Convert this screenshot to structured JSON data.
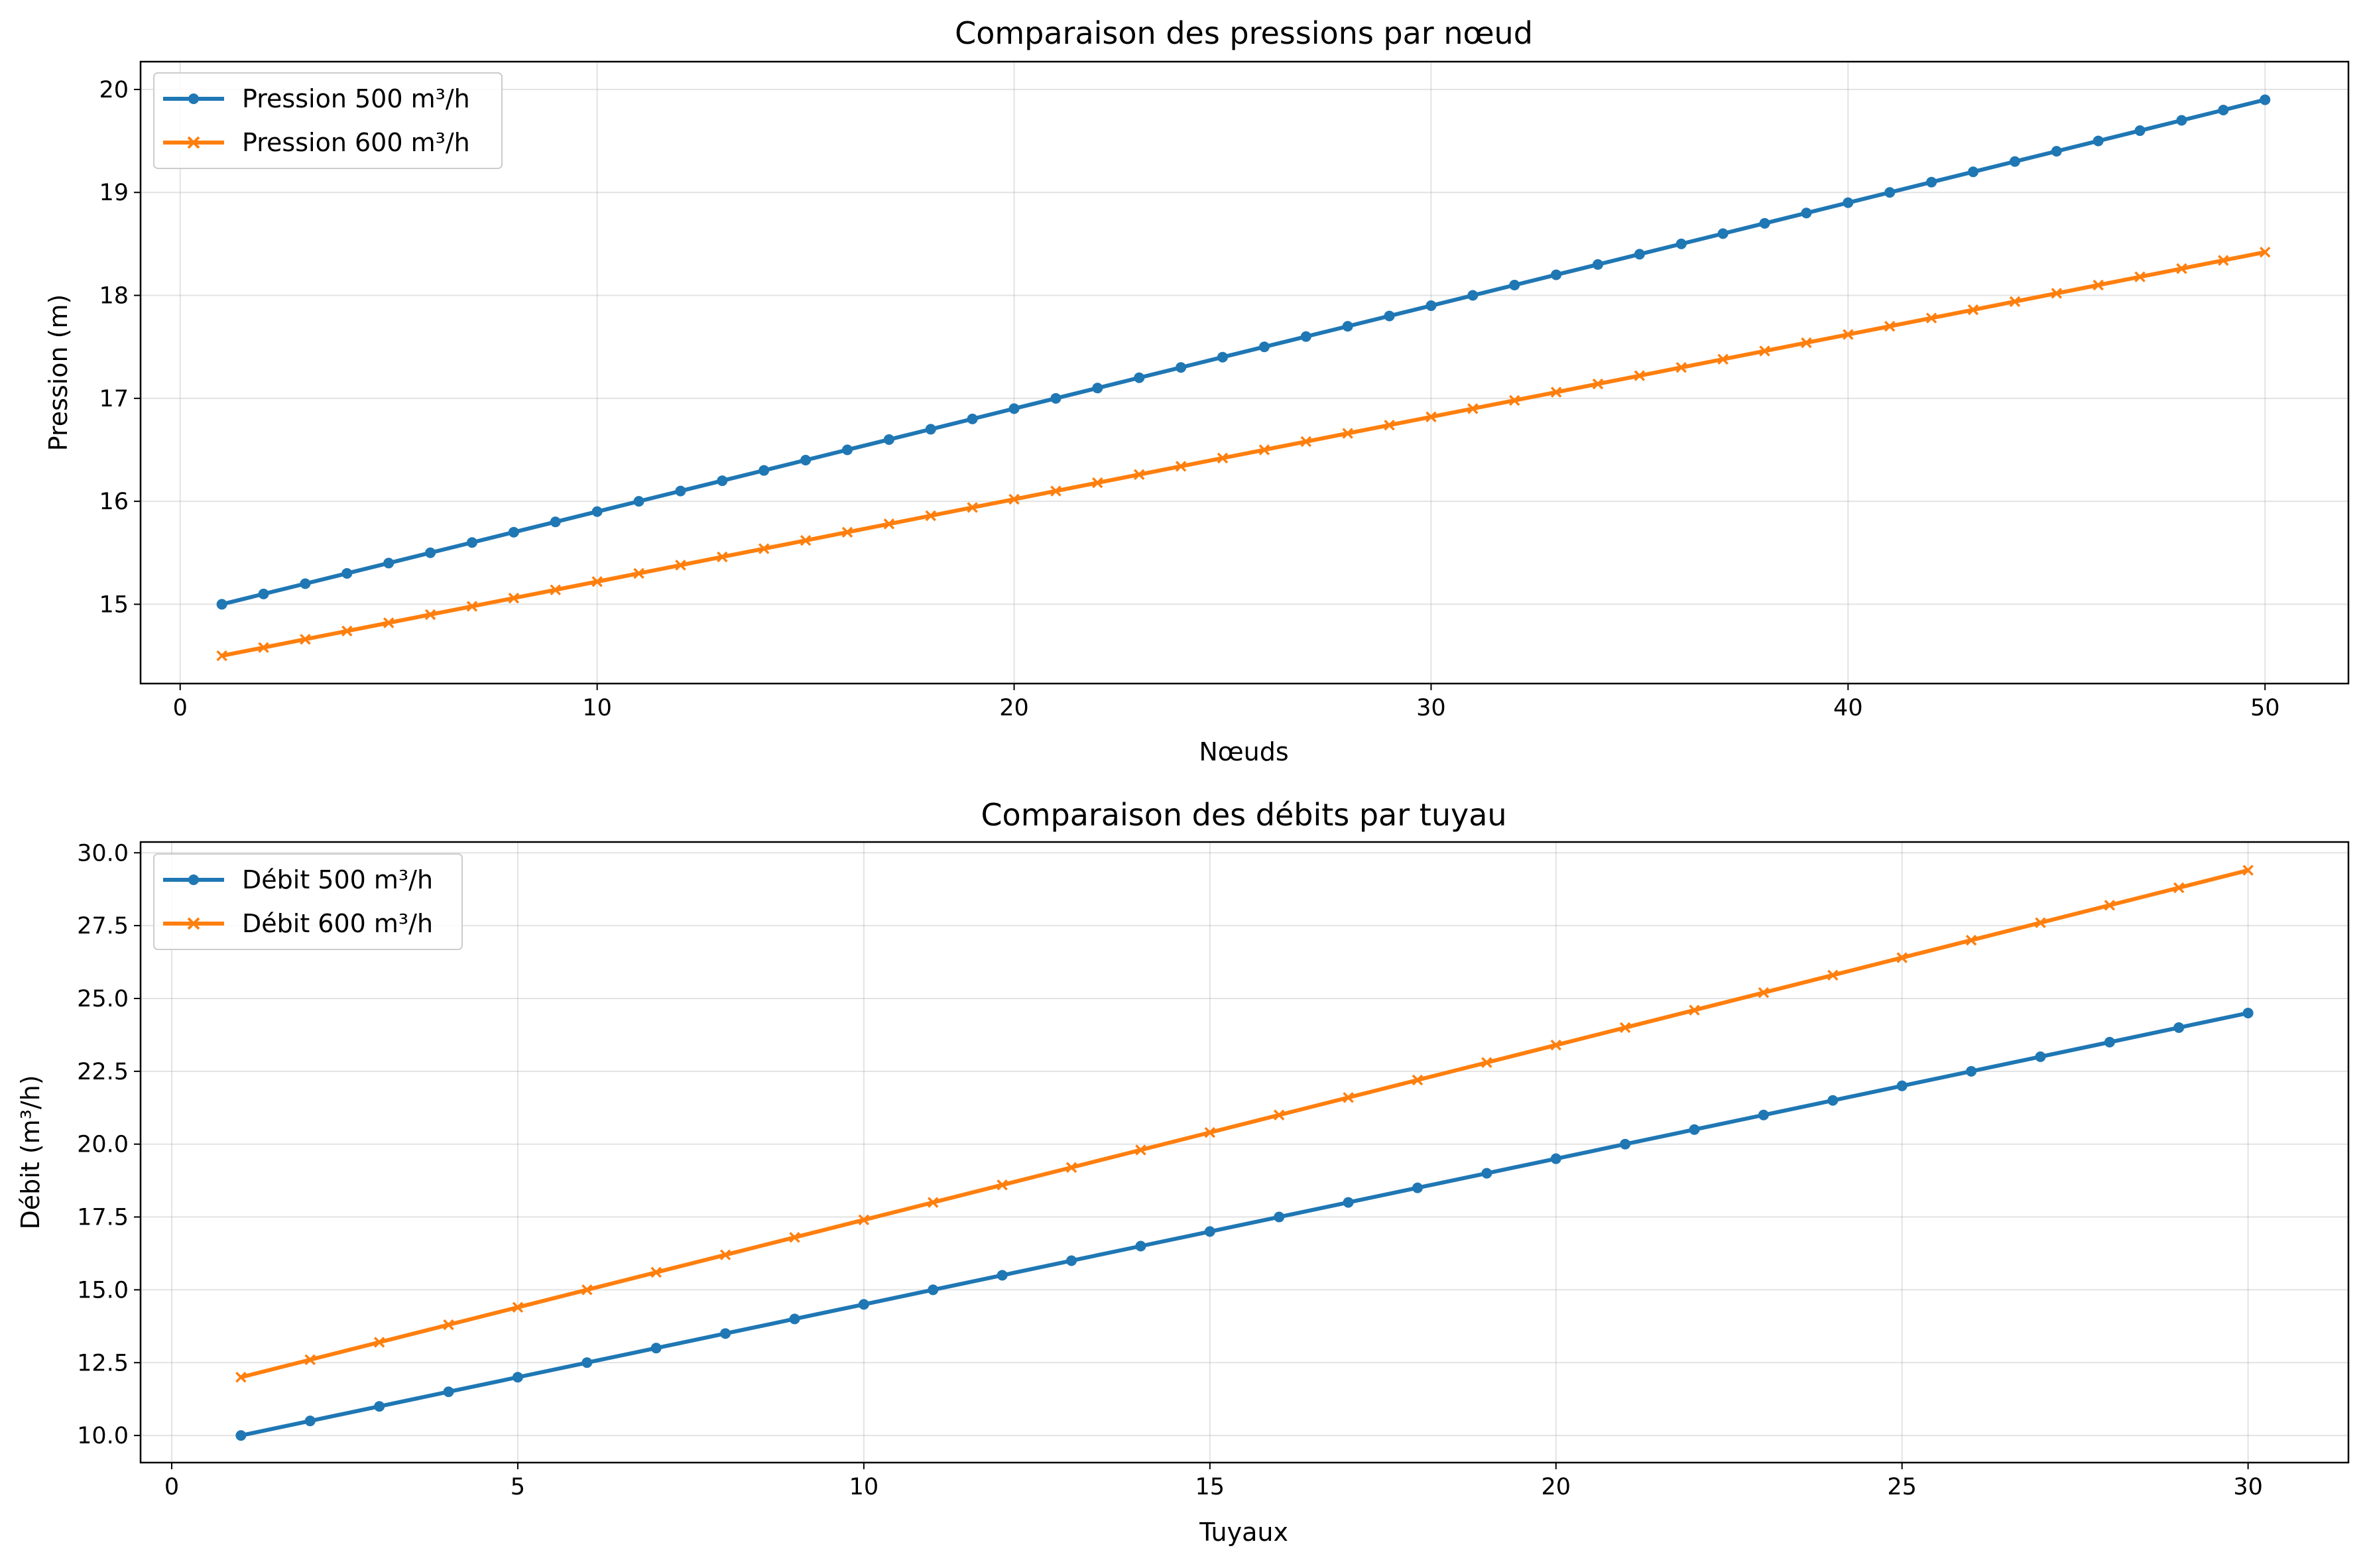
{
  "chart_data": [
    {
      "type": "line",
      "title": "Comparaison des pressions par nœud",
      "xlabel": "Nœuds",
      "ylabel": "Pression (m)",
      "xlim": [
        -0.95,
        52.0
      ],
      "ylim": [
        14.23,
        20.27
      ],
      "xticks": [
        0,
        10,
        20,
        30,
        40,
        50
      ],
      "yticks": [
        15,
        16,
        17,
        18,
        19,
        20
      ],
      "grid": true,
      "legend_position": "upper left",
      "x": [
        1,
        2,
        3,
        4,
        5,
        6,
        7,
        8,
        9,
        10,
        11,
        12,
        13,
        14,
        15,
        16,
        17,
        18,
        19,
        20,
        21,
        22,
        23,
        24,
        25,
        26,
        27,
        28,
        29,
        30,
        31,
        32,
        33,
        34,
        35,
        36,
        37,
        38,
        39,
        40,
        41,
        42,
        43,
        44,
        45,
        46,
        47,
        48,
        49,
        50
      ],
      "series": [
        {
          "name": "Pression 500 m³/h",
          "color": "#1f77b4",
          "marker": "circle",
          "values": [
            15.0,
            15.1,
            15.2,
            15.3,
            15.4,
            15.5,
            15.6,
            15.7,
            15.8,
            15.9,
            16.0,
            16.1,
            16.2,
            16.3,
            16.4,
            16.5,
            16.6,
            16.7,
            16.8,
            16.9,
            17.0,
            17.1,
            17.2,
            17.3,
            17.4,
            17.5,
            17.6,
            17.7,
            17.8,
            17.9,
            18.0,
            18.1,
            18.2,
            18.3,
            18.4,
            18.5,
            18.6,
            18.7,
            18.8,
            18.9,
            19.0,
            19.1,
            19.2,
            19.3,
            19.4,
            19.5,
            19.6,
            19.7,
            19.8,
            19.9
          ]
        },
        {
          "name": "Pression 600 m³/h",
          "color": "#ff7f0e",
          "marker": "x",
          "values": [
            14.5,
            14.58,
            14.66,
            14.74,
            14.82,
            14.9,
            14.98,
            15.06,
            15.14,
            15.22,
            15.3,
            15.38,
            15.46,
            15.54,
            15.62,
            15.7,
            15.78,
            15.86,
            15.94,
            16.02,
            16.1,
            16.18,
            16.26,
            16.34,
            16.42,
            16.5,
            16.58,
            16.66,
            16.74,
            16.82,
            16.9,
            16.98,
            17.06,
            17.14,
            17.22,
            17.3,
            17.38,
            17.46,
            17.54,
            17.62,
            17.7,
            17.78,
            17.86,
            17.94,
            18.02,
            18.1,
            18.18,
            18.26,
            18.34,
            18.42
          ]
        }
      ]
    },
    {
      "type": "line",
      "title": "Comparaison des débits par tuyau",
      "xlabel": "Tuyaux",
      "ylabel": "Débit (m³/h)",
      "xlim": [
        -0.45,
        31.45
      ],
      "ylim": [
        9.07,
        30.37
      ],
      "xticks": [
        0,
        5,
        10,
        15,
        20,
        25,
        30
      ],
      "yticks": [
        10.0,
        12.5,
        15.0,
        17.5,
        20.0,
        22.5,
        25.0,
        27.5,
        30.0
      ],
      "ytick_labels": [
        "10.0",
        "12.5",
        "15.0",
        "17.5",
        "20.0",
        "22.5",
        "25.0",
        "27.5",
        "30.0"
      ],
      "grid": true,
      "legend_position": "upper left",
      "x": [
        1,
        2,
        3,
        4,
        5,
        6,
        7,
        8,
        9,
        10,
        11,
        12,
        13,
        14,
        15,
        16,
        17,
        18,
        19,
        20,
        21,
        22,
        23,
        24,
        25,
        26,
        27,
        28,
        29,
        30
      ],
      "series": [
        {
          "name": "Débit 500 m³/h",
          "color": "#1f77b4",
          "marker": "circle",
          "values": [
            10.0,
            10.5,
            11.0,
            11.5,
            12.0,
            12.5,
            13.0,
            13.5,
            14.0,
            14.5,
            15.0,
            15.5,
            16.0,
            16.5,
            17.0,
            17.5,
            18.0,
            18.5,
            19.0,
            19.5,
            20.0,
            20.5,
            21.0,
            21.5,
            22.0,
            22.5,
            23.0,
            23.5,
            24.0,
            24.5
          ]
        },
        {
          "name": "Débit 600 m³/h",
          "color": "#ff7f0e",
          "marker": "x",
          "values": [
            12.0,
            12.6,
            13.2,
            13.8,
            14.4,
            15.0,
            15.6,
            16.2,
            16.8,
            17.4,
            18.0,
            18.6,
            19.2,
            19.8,
            20.4,
            21.0,
            21.6,
            22.2,
            22.8,
            23.4,
            24.0,
            24.6,
            25.2,
            25.8,
            26.4,
            27.0,
            27.6,
            28.2,
            28.8,
            29.4
          ]
        }
      ]
    }
  ]
}
